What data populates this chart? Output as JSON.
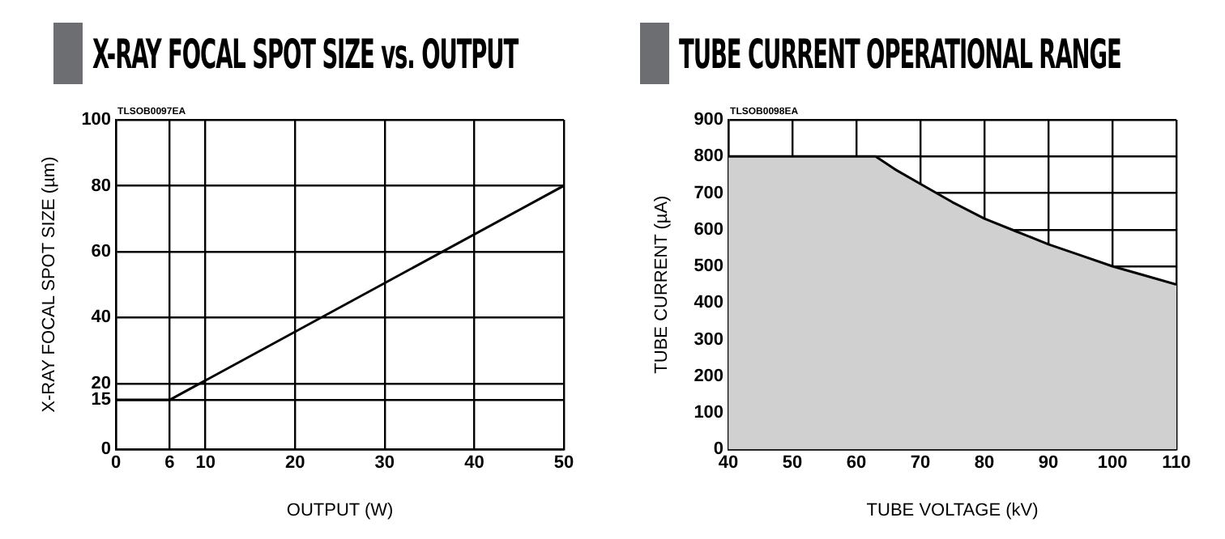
{
  "chart_data": [
    {
      "type": "line",
      "title": "X-RAY FOCAL SPOT SIZE vs. OUTPUT",
      "xlabel": "OUTPUT (W)",
      "ylabel": "X-RAY FOCAL SPOT SIZE (µm)",
      "annotations": [
        "TLSOB0097EA"
      ],
      "x": [
        0,
        6,
        50
      ],
      "series": [
        {
          "color": "#000000",
          "values": [
            15,
            15,
            80
          ]
        }
      ],
      "xlim": [
        0,
        50
      ],
      "xticks": [
        0,
        6,
        10,
        20,
        30,
        40,
        50
      ],
      "ylim": [
        0,
        100
      ],
      "yticks": [
        0,
        15,
        20,
        40,
        60,
        80,
        100
      ],
      "grid": true,
      "legend": false,
      "marker": "none"
    },
    {
      "type": "area",
      "title": "TUBE CURRENT OPERATIONAL RANGE",
      "xlabel": "TUBE VOLTAGE (kV)",
      "ylabel": "TUBE CURRENT (µA)",
      "annotations": [
        "TLSOB0098EA"
      ],
      "x": [
        40,
        63,
        66,
        70,
        75,
        80,
        85,
        90,
        95,
        100,
        105,
        110
      ],
      "series": [
        {
          "color": "#d0d0d0",
          "values": [
            800,
            800,
            765,
            725,
            675,
            630,
            595,
            560,
            530,
            500,
            475,
            450
          ]
        }
      ],
      "xlim": [
        40,
        110
      ],
      "xticks": [
        40,
        50,
        60,
        70,
        80,
        90,
        100,
        110
      ],
      "ylim": [
        0,
        900
      ],
      "yticks": [
        0,
        100,
        200,
        300,
        400,
        500,
        600,
        700,
        800,
        900
      ],
      "grid": true,
      "legend": false,
      "marker": "none"
    }
  ]
}
